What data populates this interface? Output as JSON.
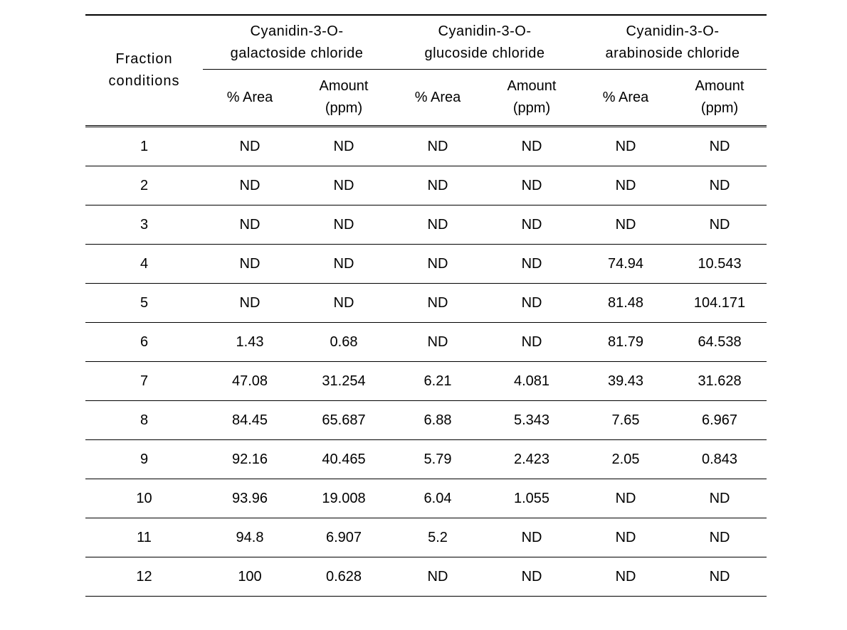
{
  "table": {
    "type": "table",
    "background_color": "#ffffff",
    "text_color": "#000000",
    "rule_color": "#000000",
    "font_size_pt": 15,
    "header": {
      "row_label_line1": "Fraction",
      "row_label_line2": "conditions",
      "compounds": [
        {
          "line1": "Cyanidin-3-O-",
          "line2": "galactoside  chloride"
        },
        {
          "line1": "Cyanidin-3-O-",
          "line2": "glucoside  chloride"
        },
        {
          "line1": "Cyanidin-3-O-",
          "line2": "arabinoside  chloride"
        }
      ],
      "sub": {
        "area": "%  Area",
        "amount_line1": "Amount",
        "amount_line2": "(ppm)"
      }
    },
    "rows": [
      {
        "n": "1",
        "a1": "ND",
        "v1": "ND",
        "a2": "ND",
        "v2": "ND",
        "a3": "ND",
        "v3": "ND"
      },
      {
        "n": "2",
        "a1": "ND",
        "v1": "ND",
        "a2": "ND",
        "v2": "ND",
        "a3": "ND",
        "v3": "ND"
      },
      {
        "n": "3",
        "a1": "ND",
        "v1": "ND",
        "a2": "ND",
        "v2": "ND",
        "a3": "ND",
        "v3": "ND"
      },
      {
        "n": "4",
        "a1": "ND",
        "v1": "ND",
        "a2": "ND",
        "v2": "ND",
        "a3": "74.94",
        "v3": "10.543"
      },
      {
        "n": "5",
        "a1": "ND",
        "v1": "ND",
        "a2": "ND",
        "v2": "ND",
        "a3": "81.48",
        "v3": "104.171"
      },
      {
        "n": "6",
        "a1": "1.43",
        "v1": "0.68",
        "a2": "ND",
        "v2": "ND",
        "a3": "81.79",
        "v3": "64.538"
      },
      {
        "n": "7",
        "a1": "47.08",
        "v1": "31.254",
        "a2": "6.21",
        "v2": "4.081",
        "a3": "39.43",
        "v3": "31.628"
      },
      {
        "n": "8",
        "a1": "84.45",
        "v1": "65.687",
        "a2": "6.88",
        "v2": "5.343",
        "a3": "7.65",
        "v3": "6.967"
      },
      {
        "n": "9",
        "a1": "92.16",
        "v1": "40.465",
        "a2": "5.79",
        "v2": "2.423",
        "a3": "2.05",
        "v3": "0.843"
      },
      {
        "n": "10",
        "a1": "93.96",
        "v1": "19.008",
        "a2": "6.04",
        "v2": "1.055",
        "a3": "ND",
        "v3": "ND"
      },
      {
        "n": "11",
        "a1": "94.8",
        "v1": "6.907",
        "a2": "5.2",
        "v2": "ND",
        "a3": "ND",
        "v3": "ND"
      },
      {
        "n": "12",
        "a1": "100",
        "v1": "0.628",
        "a2": "ND",
        "v2": "ND",
        "a3": "ND",
        "v3": "ND"
      }
    ]
  }
}
